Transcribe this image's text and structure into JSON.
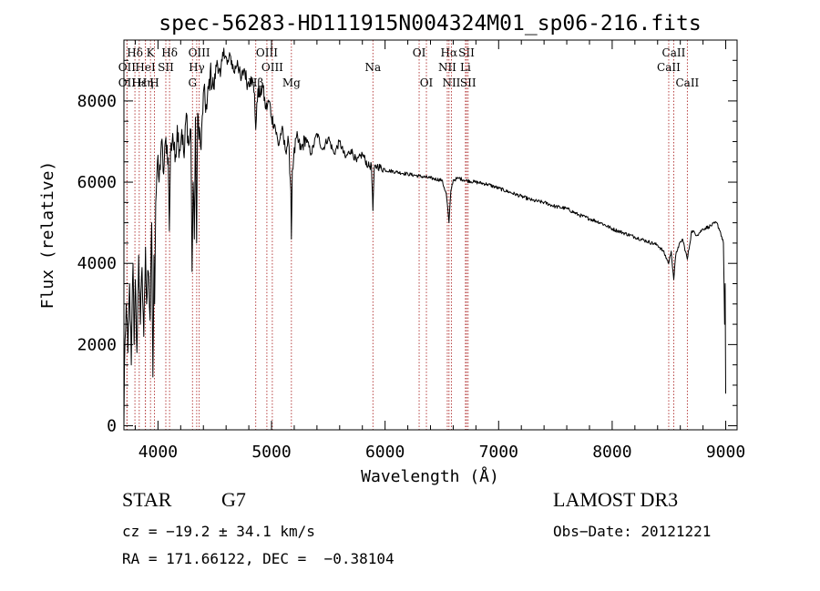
{
  "chart_data": {
    "type": "line",
    "title": "spec-56283-HD111915N004324M01_sp06-216.fits",
    "xlabel": "Wavelength (Å)",
    "ylabel": "Flux (relative)",
    "xlim": [
      3700,
      9100
    ],
    "ylim": [
      -100,
      9500
    ],
    "x_ticks": [
      4000,
      5000,
      6000,
      7000,
      8000,
      9000
    ],
    "x_tick_labels": [
      "4000",
      "5000",
      "6000",
      "7000",
      "8000",
      "9000"
    ],
    "y_ticks": [
      0,
      2000,
      4000,
      6000,
      8000
    ],
    "y_tick_labels": [
      "0",
      "2000",
      "4000",
      "6000",
      "8000"
    ],
    "series": [
      {
        "name": "spectrum",
        "color": "#000000",
        "x": [
          3700,
          3705,
          3720,
          3735,
          3750,
          3765,
          3780,
          3790,
          3800,
          3815,
          3830,
          3845,
          3860,
          3875,
          3890,
          3900,
          3915,
          3930,
          3945,
          3955,
          3965,
          3970,
          3980,
          3995,
          4010,
          4030,
          4050,
          4070,
          4090,
          4100,
          4110,
          4130,
          4150,
          4170,
          4190,
          4210,
          4230,
          4250,
          4270,
          4290,
          4300,
          4310,
          4320,
          4330,
          4340,
          4350,
          4380,
          4400,
          4430,
          4460,
          4490,
          4520,
          4550,
          4580,
          4610,
          4640,
          4670,
          4700,
          4730,
          4760,
          4790,
          4820,
          4850,
          4861,
          4880,
          4900,
          4920,
          4950,
          4980,
          5000,
          5030,
          5060,
          5090,
          5120,
          5150,
          5170,
          5175,
          5183,
          5195,
          5220,
          5260,
          5300,
          5350,
          5400,
          5450,
          5500,
          5550,
          5600,
          5650,
          5700,
          5750,
          5800,
          5850,
          5880,
          5893,
          5905,
          5930,
          6000,
          6100,
          6200,
          6300,
          6400,
          6500,
          6540,
          6563,
          6580,
          6600,
          6650,
          6700,
          6800,
          6900,
          7000,
          7100,
          7200,
          7300,
          7400,
          7500,
          7600,
          7700,
          7800,
          7900,
          8000,
          8100,
          8200,
          8300,
          8400,
          8450,
          8498,
          8520,
          8542,
          8560,
          8580,
          8620,
          8662,
          8700,
          8750,
          8800,
          8850,
          8880,
          8920,
          8950,
          8980,
          8990,
          8995,
          9000,
          9002
        ],
        "y": [
          0,
          1500,
          3000,
          1800,
          3500,
          1500,
          4000,
          2000,
          3600,
          1800,
          4200,
          2500,
          3900,
          2200,
          4400,
          3000,
          3800,
          2600,
          5000,
          1200,
          4200,
          3000,
          5500,
          6500,
          6000,
          7000,
          6200,
          7100,
          6600,
          4800,
          6700,
          7200,
          6500,
          7400,
          6800,
          7300,
          6600,
          7700,
          6900,
          7300,
          3800,
          6000,
          4600,
          7600,
          4500,
          7700,
          6800,
          8200,
          7800,
          8700,
          8300,
          9000,
          8600,
          9300,
          8900,
          9100,
          8700,
          9000,
          8500,
          8800,
          8400,
          8600,
          8200,
          7300,
          8300,
          8100,
          8400,
          7800,
          8000,
          7600,
          7400,
          6900,
          7300,
          6800,
          7000,
          5800,
          4600,
          6300,
          6600,
          7100,
          6800,
          7100,
          6700,
          7200,
          6800,
          7100,
          6700,
          7000,
          6600,
          6800,
          6500,
          6700,
          6400,
          6400,
          5300,
          6350,
          6400,
          6300,
          6250,
          6200,
          6150,
          6100,
          6050,
          5700,
          5000,
          5800,
          6050,
          6100,
          6050,
          6000,
          5950,
          5850,
          5750,
          5650,
          5550,
          5500,
          5400,
          5350,
          5200,
          5100,
          5000,
          4850,
          4750,
          4650,
          4550,
          4450,
          4300,
          4000,
          4300,
          3600,
          4200,
          4400,
          4600,
          4100,
          4800,
          4700,
          4850,
          4900,
          4950,
          5000,
          4800,
          4500,
          2500,
          3500,
          800,
          800
        ]
      }
    ],
    "lines": [
      {
        "label": "Hδ",
        "row": 1,
        "x": 3797
      },
      {
        "label": "OII",
        "row": 2,
        "x": 3727
      },
      {
        "label": "OII",
        "row": 3,
        "x": 3727
      },
      {
        "label": "Hε",
        "row": 3,
        "x": 3835
      },
      {
        "label": "HeI",
        "row": 2,
        "x": 3889
      },
      {
        "label": "Hη",
        "row": 3,
        "x": 3890
      },
      {
        "label": "K",
        "row": 1,
        "x": 3934
      },
      {
        "label": "SII",
        "row": 2,
        "x": 4069
      },
      {
        "label": "H",
        "row": 3,
        "x": 3969
      },
      {
        "label": "Hδ",
        "row": 1,
        "x": 4102
      },
      {
        "label": "OIII",
        "row": 1,
        "x": 4363
      },
      {
        "label": "Hγ",
        "row": 2,
        "x": 4341
      },
      {
        "label": "G",
        "row": 3,
        "x": 4304
      },
      {
        "label": "Hβ",
        "row": 3,
        "x": 4861
      },
      {
        "label": "OIII",
        "row": 1,
        "x": 4959
      },
      {
        "label": "OIII",
        "row": 2,
        "x": 5007
      },
      {
        "label": "Mg",
        "row": 3,
        "x": 5175
      },
      {
        "label": "Na",
        "row": 2,
        "x": 5893
      },
      {
        "label": "OI",
        "row": 1,
        "x": 6300
      },
      {
        "label": "OI",
        "row": 3,
        "x": 6364
      },
      {
        "label": "Hα",
        "row": 1,
        "x": 6563
      },
      {
        "label": "NII",
        "row": 2,
        "x": 6548
      },
      {
        "label": "NII",
        "row": 3,
        "x": 6584
      },
      {
        "label": "SII",
        "row": 1,
        "x": 6717
      },
      {
        "label": "Li",
        "row": 2,
        "x": 6708
      },
      {
        "label": "SII",
        "row": 3,
        "x": 6731
      },
      {
        "label": "CaII",
        "row": 1,
        "x": 8542
      },
      {
        "label": "CaII",
        "row": 2,
        "x": 8498
      },
      {
        "label": "CaII",
        "row": 3,
        "x": 8662
      }
    ]
  },
  "info": {
    "class_label": "STAR",
    "subclass": "G7",
    "survey": "LAMOST DR3",
    "cz": "cz = −19.2 ± 34.1 km/s",
    "obs_date": "Obs−Date: 20121221",
    "coords": "RA = 171.66122, DEC =  −0.38104"
  },
  "colors": {
    "spectrum": "#000000",
    "marker_line": "#b03030",
    "axis": "#000000"
  }
}
